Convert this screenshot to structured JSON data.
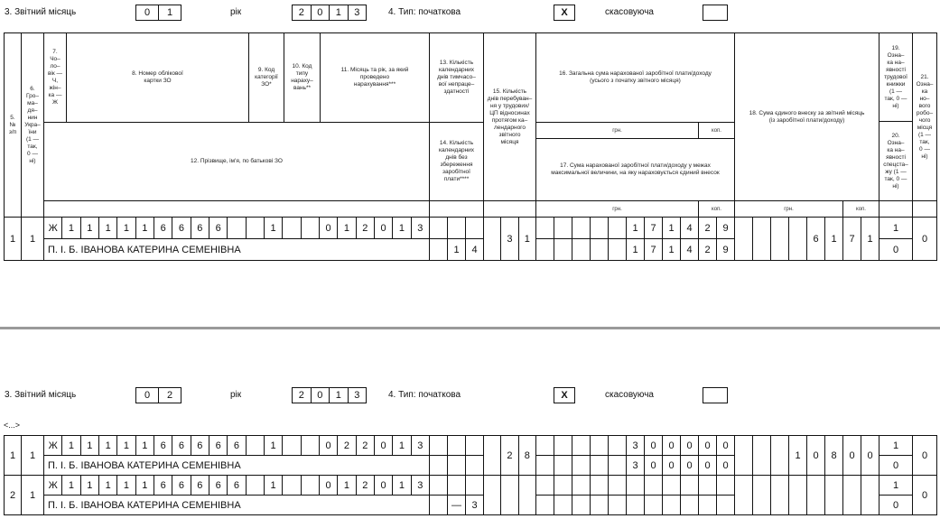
{
  "form_header": {
    "month_label": "3. Звітний місяць",
    "year_label": "рік",
    "type_label": "4. Тип: початкова",
    "cancel_label": "скасовуюча"
  },
  "periods": [
    {
      "month": [
        "0",
        "1"
      ],
      "year": [
        "2",
        "0",
        "1",
        "3"
      ],
      "initial_mark": "X",
      "cancel_mark": ""
    },
    {
      "month": [
        "0",
        "2"
      ],
      "year": [
        "2",
        "0",
        "1",
        "3"
      ],
      "initial_mark": "X",
      "cancel_mark": ""
    }
  ],
  "columns": {
    "c5": "5.\n№\nз/п",
    "c6": "6.\nГро–\nма–\nдя–\nнин\nУкра–\nїни\n(1 —\nтак,\n0 —\nні)",
    "c7": "7.\nЧо–\nло–\nвік —\nЧ,\nжін–\nка —\nЖ",
    "c8": "8. Номер облікової\nкартки ЗО",
    "c9": "9. Код\nкатегорії\nЗО*",
    "c10": "10. Код\nтипу\nнараху–\nвань**",
    "c11": "11. Місяць та рік, за який\nпроведено\nнарахування***",
    "c12": "12. Прізвище, ім'я, по батькові ЗО",
    "c13": "13. Кількість\nкалендарних\nднів тимчасо–\nвої непраце–\nздатності",
    "c14": "14. Кількість\nкалендарних\nднів без\nзбереження\nзаробітної\nплати****",
    "c15": "15. Кількість\nднів перебуван–\nня у трудових/\nЦП відносинах\nпротягом ка–\nлендарного\nзвітного\nмісяця",
    "c16": "16. Загальна сума нарахованої заробітної плати/доходу\n(усього з початку звітного місяця)",
    "c17": "17. Сума нарахованої заробітної плати/доходу у межах\nмаксимальної величини, на яку нараховується єдиний внесок",
    "c18": "18. Сума єдиного внеску за звітний місяць\n(із заробітної плати/доходу)",
    "c19": "19.\nОзна–\nка на–\nявності\nтрудової\nкнижки\n(1 —\nтак, 0 —\nні)",
    "c20": "20.\nОзна–\nка на–\nявності\nспецста–\nжу (1 —\nтак, 0 —\nні)",
    "c21": "21.\nОзна–\nка\nно–\nвого\nробо–\nчого\nмісця\n(1 —\nтак,\n0 —\nні)",
    "uah": "грн.",
    "kop": "коп."
  },
  "ellipsis": "<...>",
  "upper_rows": [
    {
      "num": "1",
      "citizen": "1",
      "code_cells": [
        "Ж",
        "1",
        "1",
        "1",
        "1",
        "1",
        "6",
        "6",
        "6",
        "6",
        "",
        "",
        "1",
        "",
        "",
        "0",
        "1",
        "2",
        "0",
        "1",
        "3"
      ],
      "name": "П. І. Б. ІВАНОВА КАТЕРИНА СЕМЕНІВНА",
      "days13": [
        "",
        "",
        ""
      ],
      "days14": [
        "",
        "1",
        "4"
      ],
      "days15": [
        "",
        "3",
        "1"
      ],
      "sum16": [
        "",
        "",
        "",
        "",
        "",
        "1",
        "7",
        "1",
        "4",
        "2",
        "9"
      ],
      "sum17": [
        "",
        "",
        "",
        "",
        "",
        "1",
        "7",
        "1",
        "4",
        "2",
        "9"
      ],
      "sum18": [
        "",
        "",
        "",
        "",
        "6",
        "1",
        "7",
        "1"
      ],
      "book": "1",
      "special": "0",
      "new_place": "0"
    }
  ],
  "lower_rows": [
    {
      "num": "1",
      "citizen": "1",
      "code_cells": [
        "Ж",
        "1",
        "1",
        "1",
        "1",
        "1",
        "6",
        "6",
        "6",
        "6",
        "6",
        "",
        "1",
        "",
        "",
        "0",
        "2",
        "2",
        "0",
        "1",
        "3"
      ],
      "name": "П. І. Б. ІВАНОВА КАТЕРИНА СЕМЕНІВНА",
      "days13": [
        "",
        "",
        ""
      ],
      "days14": [
        "",
        "",
        ""
      ],
      "days15": [
        "",
        "2",
        "8"
      ],
      "sum16": [
        "",
        "",
        "",
        "",
        "",
        "3",
        "0",
        "0",
        "0",
        "0",
        "0"
      ],
      "sum17": [
        "",
        "",
        "",
        "",
        "",
        "3",
        "0",
        "0",
        "0",
        "0",
        "0"
      ],
      "sum18": [
        "",
        "",
        "",
        "1",
        "0",
        "8",
        "0",
        "0"
      ],
      "book": "1",
      "special": "0",
      "new_place": "0"
    },
    {
      "num": "2",
      "citizen": "1",
      "code_cells": [
        "Ж",
        "1",
        "1",
        "1",
        "1",
        "1",
        "6",
        "6",
        "6",
        "6",
        "6",
        "",
        "1",
        "",
        "",
        "0",
        "1",
        "2",
        "0",
        "1",
        "3"
      ],
      "name": "П. І. Б. ІВАНОВА КАТЕРИНА СЕМЕНІВНА",
      "days13": [
        "",
        "",
        ""
      ],
      "days14": [
        "",
        "—",
        "3"
      ],
      "days15": [
        "",
        "",
        ""
      ],
      "sum16": [
        "",
        "",
        "",
        "",
        "",
        "",
        "",
        "",
        "",
        "",
        ""
      ],
      "sum17": [
        "",
        "",
        "",
        "",
        "",
        "",
        "",
        "",
        "",
        "",
        ""
      ],
      "sum18": [
        "",
        "",
        "",
        "",
        "",
        "",
        "",
        ""
      ],
      "book": "1",
      "special": "0",
      "new_place": "0"
    }
  ]
}
